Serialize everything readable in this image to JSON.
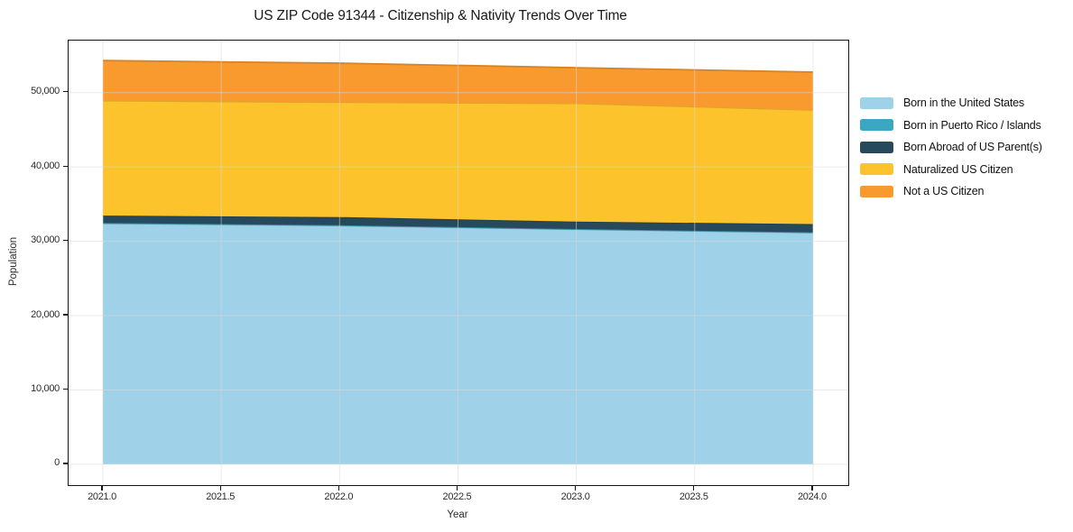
{
  "title": "US ZIP Code 91344 - Citizenship & Nativity Trends Over Time",
  "chart_data": {
    "type": "area",
    "stacked": true,
    "title": "US ZIP Code 91344 - Citizenship & Nativity Trends Over Time",
    "xlabel": "Year",
    "ylabel": "Population",
    "x": [
      2021,
      2022,
      2023,
      2024
    ],
    "series": [
      {
        "name": "Born in the United States",
        "color": "#9fd1e8",
        "values": [
          32400,
          32100,
          31600,
          31150
        ]
      },
      {
        "name": "Born in Puerto Rico / Islands",
        "color": "#3ba7c3",
        "values": [
          60,
          60,
          50,
          60
        ]
      },
      {
        "name": "Born Abroad of US Parent(s)",
        "color": "#27495c",
        "values": [
          1000,
          1100,
          1000,
          1100
        ]
      },
      {
        "name": "Naturalized US Citizen",
        "color": "#fcc32d",
        "values": [
          15450,
          15450,
          15900,
          15350
        ]
      },
      {
        "name": "Not a US Citizen",
        "color": "#f89a2d",
        "values": [
          5400,
          5250,
          4800,
          5100
        ]
      }
    ],
    "xlim": [
      2020.855,
      2024.149
    ],
    "ylim": [
      -2800,
      57000
    ],
    "xticks": {
      "values": [
        2021.0,
        2021.5,
        2022.0,
        2022.5,
        2023.0,
        2023.5,
        2024.0
      ],
      "labels": [
        "2021.0",
        "2021.5",
        "2022.0",
        "2022.5",
        "2023.0",
        "2023.5",
        "2024.0"
      ]
    },
    "yticks": {
      "values": [
        0,
        10000,
        20000,
        30000,
        40000,
        50000
      ],
      "labels": [
        "0",
        "10,000",
        "20,000",
        "30,000",
        "40,000",
        "50,000"
      ]
    },
    "grid": true,
    "gridline_color": "#d9d9d9",
    "legend_position": "right"
  }
}
